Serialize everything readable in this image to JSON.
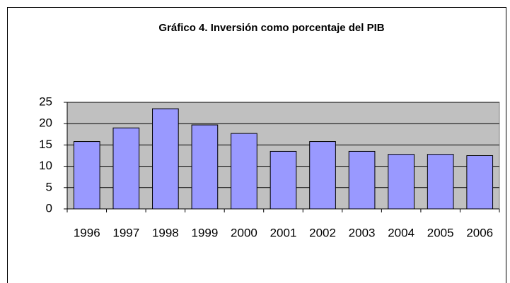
{
  "chart_data": {
    "type": "bar",
    "title": "Gráfico 4. Inversión como porcentaje del PIB",
    "categories": [
      "1996",
      "1997",
      "1998",
      "1999",
      "2000",
      "2001",
      "2002",
      "2003",
      "2004",
      "2005",
      "2006"
    ],
    "values": [
      15.8,
      19,
      23.5,
      19.7,
      17.7,
      13.5,
      15.8,
      13.5,
      12.8,
      12.8,
      12.5
    ],
    "color": "#9999ff",
    "ylim": [
      0,
      25
    ],
    "yticks": [
      0,
      5,
      10,
      15,
      20,
      25
    ],
    "grid": true
  }
}
